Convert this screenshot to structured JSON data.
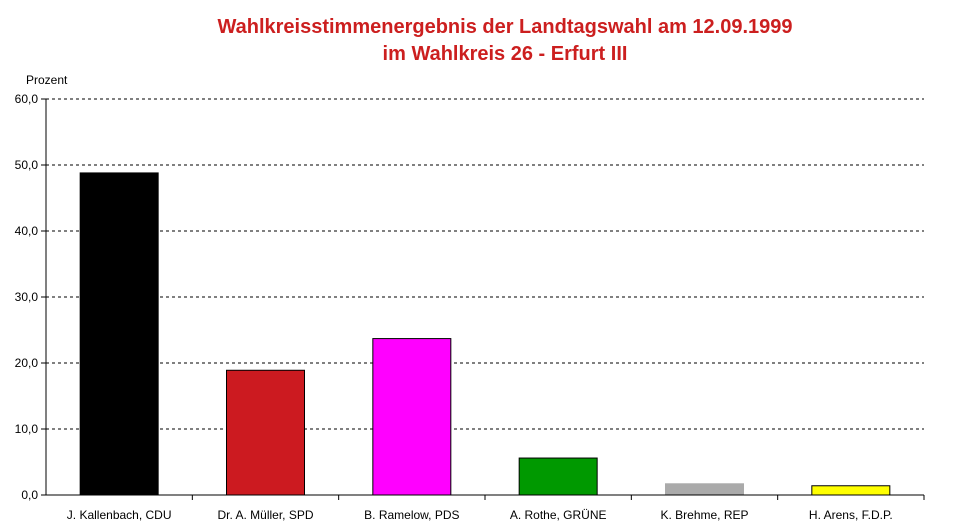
{
  "chart_data": {
    "type": "bar",
    "title": "Wahlkreisstimmenergebnis der Landtagswahl am 12.09.1999",
    "subtitle": "im Wahlkreis 26 - Erfurt III",
    "ylabel": "Prozent",
    "xlabel": "",
    "ylim": [
      0,
      60
    ],
    "yticks": [
      "0,0",
      "10,0",
      "20,0",
      "30,0",
      "40,0",
      "50,0",
      "60,0"
    ],
    "grid": true,
    "categories": [
      "J. Kallenbach, CDU",
      "Dr. A. Müller, SPD",
      "B. Ramelow, PDS",
      "A. Rothe, GRÜNE",
      "K. Brehme, REP",
      "H. Arens, F.D.P."
    ],
    "values": [
      48.8,
      18.9,
      23.7,
      5.6,
      1.7,
      1.4
    ],
    "colors": [
      "#000000",
      "#cc1a20",
      "#ff00ff",
      "#009900",
      "#aaaaaa",
      "#ffff00"
    ]
  }
}
